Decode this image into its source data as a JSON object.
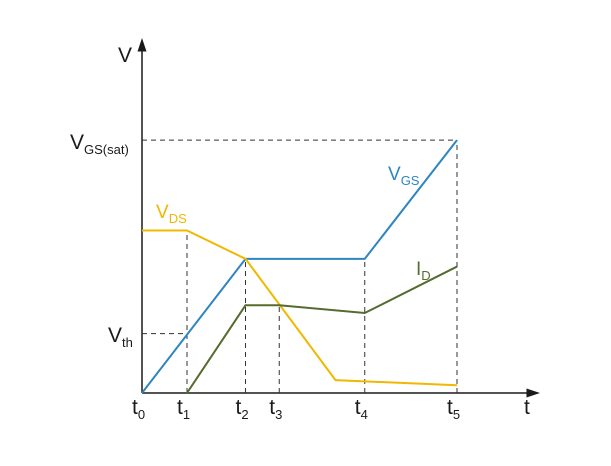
{
  "chart_data": {
    "type": "line",
    "title": "",
    "axes": {
      "y_label": "V",
      "x_label": "t"
    },
    "y_levels": {
      "vgs_sat": {
        "main": "V",
        "sub": "GS(sat)"
      },
      "vth": {
        "main": "V",
        "sub": "th"
      }
    },
    "time_marks": [
      {
        "main": "t",
        "sub": "0",
        "t": 0
      },
      {
        "main": "t",
        "sub": "1",
        "t": 1
      },
      {
        "main": "t",
        "sub": "2",
        "t": 2.3
      },
      {
        "main": "t",
        "sub": "3",
        "t": 3.05
      },
      {
        "main": "t",
        "sub": "4",
        "t": 4.95
      },
      {
        "main": "t",
        "sub": "5",
        "t": 7
      }
    ],
    "series": [
      {
        "name": {
          "main": "V",
          "sub": "GS"
        },
        "color": "#2e86c1",
        "points": [
          [
            0,
            0
          ],
          [
            2.3,
            0.52
          ],
          [
            4.95,
            0.52
          ],
          [
            7,
            0.98
          ]
        ]
      },
      {
        "name": {
          "main": "V",
          "sub": "DS"
        },
        "color": "#f0b800",
        "points": [
          [
            0,
            0.63
          ],
          [
            1,
            0.63
          ],
          [
            2.3,
            0.52
          ],
          [
            4.3,
            0.05
          ],
          [
            7,
            0.03
          ]
        ]
      },
      {
        "name": {
          "main": "I",
          "sub": "D"
        },
        "color": "#556b2f",
        "points": [
          [
            1,
            0
          ],
          [
            2.3,
            0.34
          ],
          [
            3.05,
            0.34
          ],
          [
            4.95,
            0.31
          ],
          [
            7,
            0.49
          ]
        ]
      }
    ],
    "reference_levels": {
      "vgs_sat": 0.98,
      "vth": 0.23
    },
    "xlim": [
      0,
      8.2
    ],
    "ylim": [
      0,
      1.2
    ]
  }
}
